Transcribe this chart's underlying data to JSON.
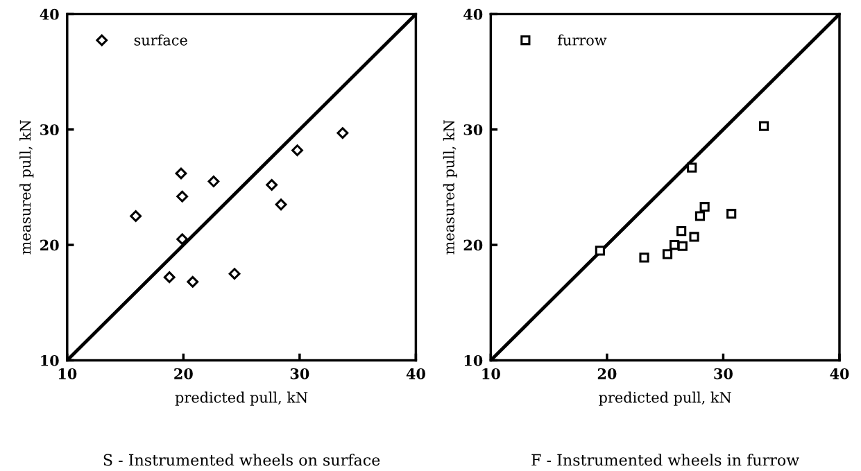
{
  "chart_data": [
    {
      "type": "scatter",
      "xlabel": "predicted pull, kN",
      "ylabel": "measured pull, kN",
      "xlim": [
        10,
        40
      ],
      "ylim": [
        10,
        40
      ],
      "xticks": [
        10,
        20,
        30,
        40
      ],
      "yticks": [
        10,
        20,
        30,
        40
      ],
      "grid": false,
      "legend": "top left",
      "annotations": [
        "S - Instrumented wheels on surface"
      ],
      "series": [
        {
          "name": "surface",
          "color": "#000000",
          "marker": "diamond",
          "x": [
            15.9,
            19.8,
            19.9,
            19.9,
            18.8,
            20.8,
            22.6,
            24.4,
            27.6,
            28.4,
            29.8,
            33.7
          ],
          "values": [
            22.5,
            26.2,
            24.2,
            20.5,
            17.2,
            16.8,
            25.5,
            17.5,
            25.2,
            23.5,
            28.2,
            29.7
          ]
        },
        {
          "type": "line",
          "color": "#000000",
          "marker": "none",
          "line_style": "solid",
          "x": [
            10,
            40
          ],
          "values": [
            10,
            40
          ]
        }
      ]
    },
    {
      "type": "scatter",
      "xlabel": "predicted pull, kN",
      "ylabel": "measured pull, kN",
      "xlim": [
        10,
        40
      ],
      "ylim": [
        10,
        40
      ],
      "xticks": [
        10,
        20,
        30,
        40
      ],
      "yticks": [
        10,
        20,
        30,
        40
      ],
      "grid": false,
      "legend": "top left",
      "annotations": [
        "F - Instrumented wheels in furrow"
      ],
      "series": [
        {
          "name": "furrow",
          "color": "#000000",
          "marker": "square",
          "x": [
            19.4,
            27.3,
            23.2,
            25.2,
            25.8,
            26.5,
            26.4,
            27.5,
            28.0,
            28.4,
            30.7,
            33.5
          ],
          "values": [
            19.5,
            26.7,
            18.9,
            19.2,
            20.0,
            19.9,
            21.2,
            20.7,
            22.5,
            23.3,
            22.7,
            30.3
          ]
        },
        {
          "type": "line",
          "color": "#000000",
          "marker": "none",
          "line_style": "solid",
          "x": [
            10,
            40
          ],
          "values": [
            10,
            40
          ]
        }
      ]
    }
  ]
}
